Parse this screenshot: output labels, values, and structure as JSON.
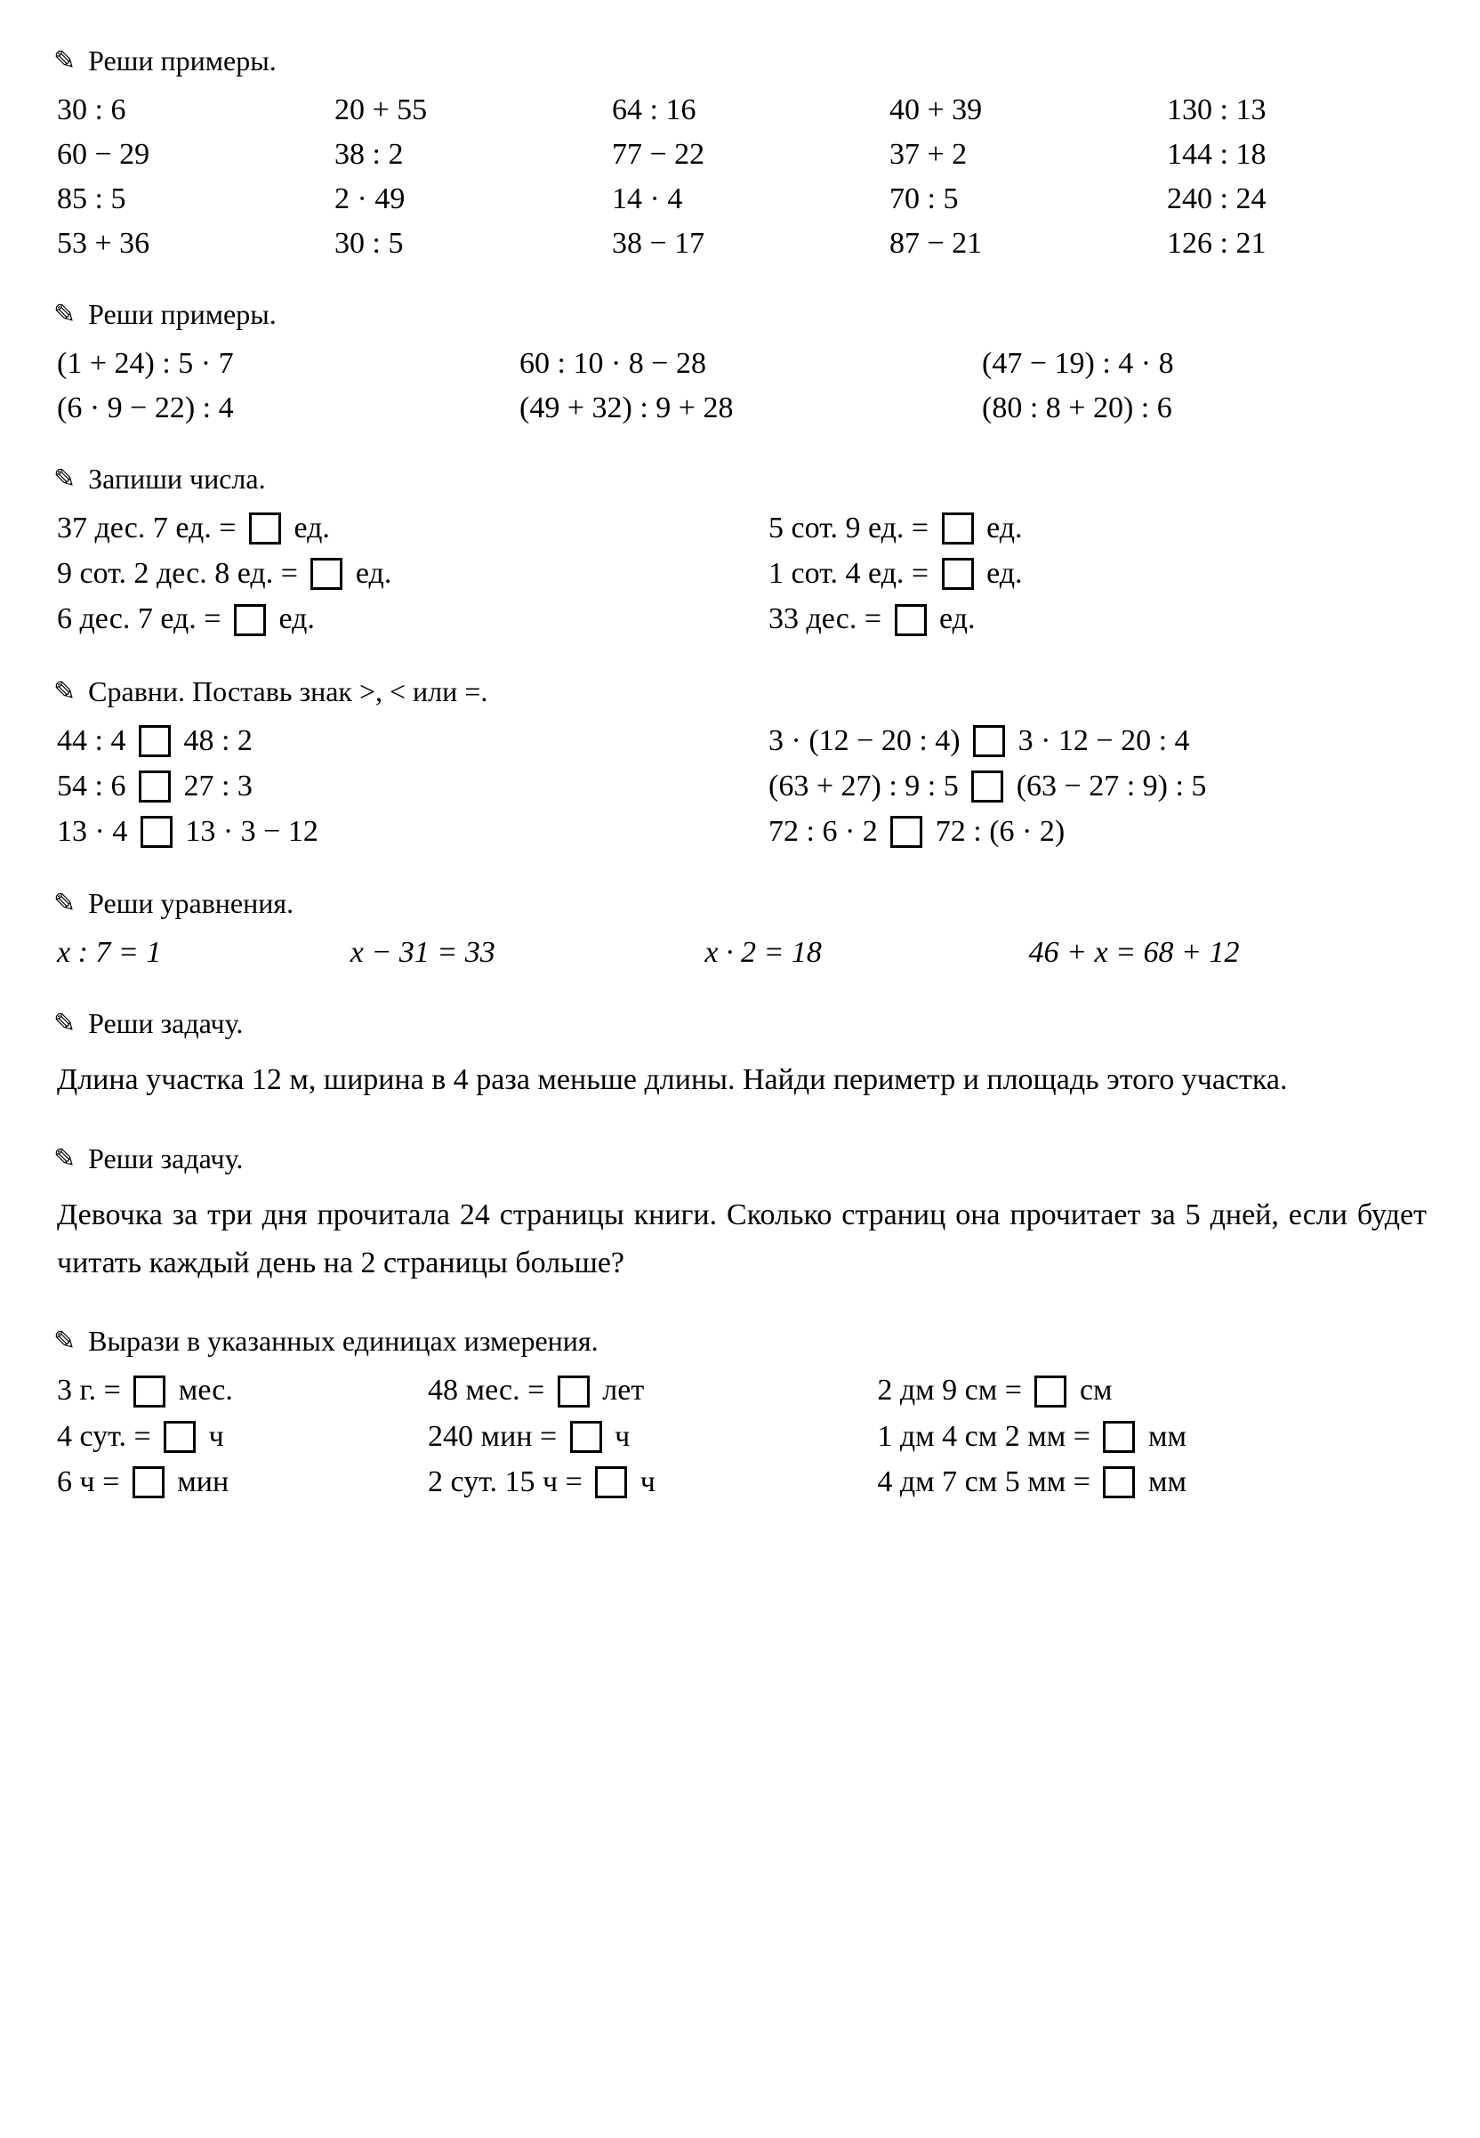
{
  "sections": {
    "s1": {
      "title": "Реши примеры.",
      "rows": [
        [
          "30 : 6",
          "20 + 55",
          "64 : 16",
          "40 + 39",
          "130 : 13"
        ],
        [
          "60 − 29",
          "38 : 2",
          "77 − 22",
          "37 + 2",
          "144 : 18"
        ],
        [
          "85 : 5",
          "2 · 49",
          "14 · 4",
          "70 : 5",
          "240 : 24"
        ],
        [
          "53 + 36",
          "30 : 5",
          "38 − 17",
          "87 − 21",
          "126 : 21"
        ]
      ]
    },
    "s2": {
      "title": "Реши примеры.",
      "rows": [
        [
          "(1 + 24) : 5 · 7",
          "60 : 10 · 8 − 28",
          "(47 − 19) : 4 · 8"
        ],
        [
          "(6 · 9 − 22) : 4",
          "(49 + 32) : 9 + 28",
          "(80 : 8 + 20) : 6"
        ]
      ]
    },
    "s3": {
      "title": "Запиши числа.",
      "rows": [
        {
          "left_a": "37 дес. 7 ед. = ",
          "left_b": " ед.",
          "right_a": "5 сот. 9 ед. = ",
          "right_b": " ед."
        },
        {
          "left_a": "9 сот. 2 дес. 8 ед. = ",
          "left_b": " ед.",
          "right_a": "1 сот. 4 ед. = ",
          "right_b": " ед."
        },
        {
          "left_a": "6 дес. 7 ед. = ",
          "left_b": " ед.",
          "right_a": "33 дес. = ",
          "right_b": " ед."
        }
      ]
    },
    "s4": {
      "title": "Сравни. Поставь знак >, < или =.",
      "rows": [
        {
          "l1": "44 : 4 ",
          "l2": " 48 : 2",
          "r1": "3 · (12 − 20 : 4) ",
          "r2": " 3 · 12 − 20 : 4"
        },
        {
          "l1": "54 : 6 ",
          "l2": " 27 : 3",
          "r1": "(63 + 27) : 9 : 5 ",
          "r2": " (63 − 27 : 9) : 5"
        },
        {
          "l1": "13 · 4 ",
          "l2": " 13 · 3 − 12",
          "r1": "72 : 6 · 2 ",
          "r2": " 72 : (6 · 2)"
        }
      ]
    },
    "s5": {
      "title": "Реши уравнения.",
      "items": [
        "x : 7 = 1",
        "x − 31 = 33",
        "x · 2 = 18",
        "46 + x = 68 + 12"
      ]
    },
    "s6": {
      "title": "Реши задачу.",
      "text": "Длина участка 12 м, ширина в 4 раза меньше длины. Найди периметр и площадь этого участка."
    },
    "s7": {
      "title": "Реши задачу.",
      "text": "Девочка за три дня прочитала 24 страницы книги. Сколько страниц она прочитает за 5 дней, если будет читать каждый день на 2 страницы больше?"
    },
    "s8": {
      "title": "Вырази в указанных единицах измерения.",
      "rows": [
        {
          "c1a": "3 г. = ",
          "c1b": " мес.",
          "c2a": "48 мес. = ",
          "c2b": " лет",
          "c3a": "2 дм 9 см = ",
          "c3b": " см"
        },
        {
          "c1a": "4 сут. = ",
          "c1b": " ч",
          "c2a": "240 мин = ",
          "c2b": " ч",
          "c3a": "1 дм 4 см 2 мм = ",
          "c3b": " мм"
        },
        {
          "c1a": "6 ч = ",
          "c1b": " мин",
          "c2a": "2 сут. 15 ч = ",
          "c2b": " ч",
          "c3a": "4 дм 7 см 5 мм = ",
          "c3b": " мм"
        }
      ]
    }
  }
}
